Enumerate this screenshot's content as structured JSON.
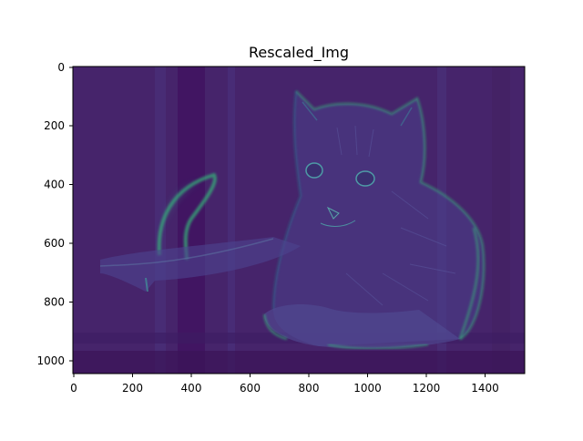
{
  "figure": {
    "title": "Rescaled_Img",
    "image": {
      "width": 1536,
      "height": 1048,
      "colormap": "viridis",
      "subject": "cat"
    },
    "x_ticks": [
      "0",
      "200",
      "400",
      "600",
      "800",
      "1000",
      "1200",
      "1400"
    ],
    "y_ticks": [
      "0",
      "200",
      "400",
      "600",
      "800",
      "1000"
    ]
  },
  "colors": {
    "background": "#440154",
    "edge_low": "#3b1f6b",
    "edge_mid": "#2c728e",
    "edge_high": "#35b779"
  }
}
